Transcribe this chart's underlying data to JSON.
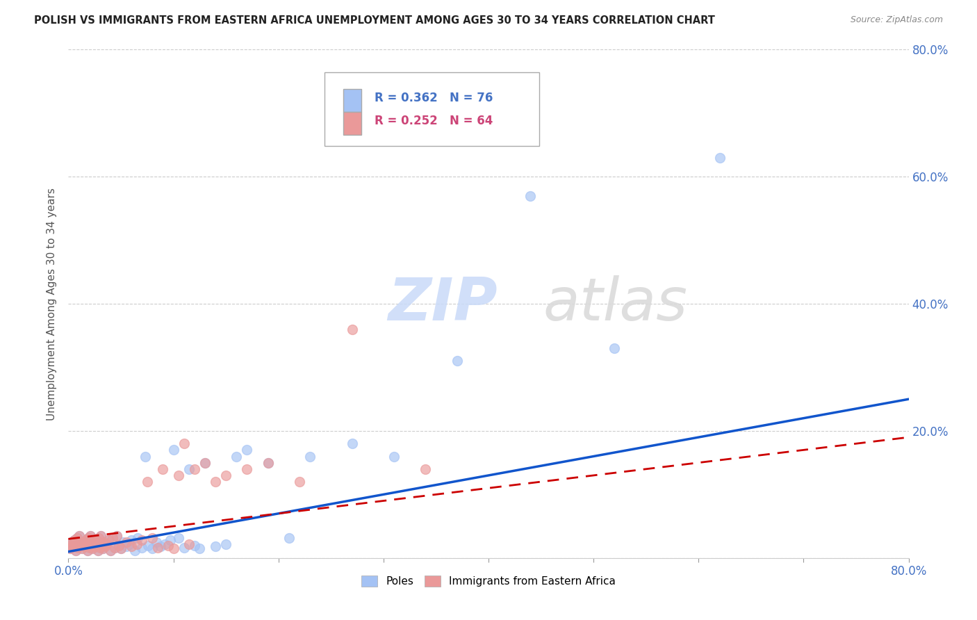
{
  "title": "POLISH VS IMMIGRANTS FROM EASTERN AFRICA UNEMPLOYMENT AMONG AGES 30 TO 34 YEARS CORRELATION CHART",
  "source": "Source: ZipAtlas.com",
  "ylabel": "Unemployment Among Ages 30 to 34 years",
  "xlim": [
    0.0,
    0.8
  ],
  "ylim": [
    0.0,
    0.8
  ],
  "poles_R": 0.362,
  "poles_N": 76,
  "immigrants_R": 0.252,
  "immigrants_N": 64,
  "poles_color": "#a4c2f4",
  "poles_line_color": "#1155cc",
  "immigrants_color": "#ea9999",
  "immigrants_line_color": "#cc0000",
  "watermark_zip": "ZIP",
  "watermark_atlas": "atlas",
  "poles_x": [
    0.001,
    0.002,
    0.003,
    0.004,
    0.005,
    0.006,
    0.007,
    0.008,
    0.009,
    0.01,
    0.012,
    0.013,
    0.014,
    0.015,
    0.016,
    0.017,
    0.018,
    0.019,
    0.02,
    0.021,
    0.022,
    0.023,
    0.024,
    0.025,
    0.026,
    0.027,
    0.028,
    0.029,
    0.03,
    0.031,
    0.032,
    0.033,
    0.034,
    0.035,
    0.036,
    0.038,
    0.04,
    0.042,
    0.044,
    0.046,
    0.048,
    0.05,
    0.052,
    0.055,
    0.058,
    0.06,
    0.063,
    0.066,
    0.07,
    0.073,
    0.076,
    0.08,
    0.084,
    0.088,
    0.092,
    0.097,
    0.1,
    0.105,
    0.11,
    0.115,
    0.12,
    0.125,
    0.13,
    0.14,
    0.15,
    0.16,
    0.17,
    0.19,
    0.21,
    0.23,
    0.27,
    0.31,
    0.37,
    0.44,
    0.52,
    0.62
  ],
  "poles_y": [
    0.02,
    0.015,
    0.025,
    0.018,
    0.022,
    0.028,
    0.012,
    0.032,
    0.016,
    0.035,
    0.02,
    0.015,
    0.025,
    0.018,
    0.022,
    0.028,
    0.012,
    0.032,
    0.016,
    0.035,
    0.02,
    0.015,
    0.025,
    0.018,
    0.022,
    0.028,
    0.012,
    0.032,
    0.016,
    0.035,
    0.02,
    0.015,
    0.025,
    0.018,
    0.022,
    0.028,
    0.012,
    0.032,
    0.016,
    0.035,
    0.02,
    0.015,
    0.025,
    0.018,
    0.022,
    0.028,
    0.012,
    0.032,
    0.016,
    0.16,
    0.02,
    0.015,
    0.025,
    0.018,
    0.022,
    0.028,
    0.17,
    0.032,
    0.016,
    0.14,
    0.02,
    0.015,
    0.15,
    0.018,
    0.022,
    0.16,
    0.17,
    0.15,
    0.032,
    0.16,
    0.18,
    0.16,
    0.31,
    0.57,
    0.33,
    0.63
  ],
  "immigrants_x": [
    0.001,
    0.002,
    0.003,
    0.004,
    0.005,
    0.006,
    0.007,
    0.008,
    0.009,
    0.01,
    0.012,
    0.013,
    0.014,
    0.015,
    0.016,
    0.017,
    0.018,
    0.019,
    0.02,
    0.021,
    0.022,
    0.023,
    0.024,
    0.025,
    0.026,
    0.027,
    0.028,
    0.029,
    0.03,
    0.031,
    0.032,
    0.033,
    0.034,
    0.035,
    0.036,
    0.038,
    0.04,
    0.042,
    0.044,
    0.046,
    0.048,
    0.05,
    0.055,
    0.06,
    0.065,
    0.07,
    0.075,
    0.08,
    0.085,
    0.09,
    0.095,
    0.1,
    0.105,
    0.11,
    0.115,
    0.12,
    0.13,
    0.14,
    0.15,
    0.17,
    0.19,
    0.22,
    0.27,
    0.34
  ],
  "immigrants_y": [
    0.02,
    0.015,
    0.025,
    0.018,
    0.022,
    0.028,
    0.012,
    0.032,
    0.016,
    0.035,
    0.02,
    0.015,
    0.025,
    0.018,
    0.022,
    0.028,
    0.012,
    0.032,
    0.016,
    0.035,
    0.02,
    0.015,
    0.025,
    0.018,
    0.022,
    0.028,
    0.012,
    0.032,
    0.016,
    0.035,
    0.02,
    0.015,
    0.025,
    0.018,
    0.022,
    0.028,
    0.012,
    0.032,
    0.016,
    0.035,
    0.02,
    0.015,
    0.025,
    0.018,
    0.022,
    0.028,
    0.12,
    0.032,
    0.016,
    0.14,
    0.02,
    0.015,
    0.13,
    0.18,
    0.022,
    0.14,
    0.15,
    0.12,
    0.13,
    0.14,
    0.15,
    0.12,
    0.36,
    0.14
  ]
}
